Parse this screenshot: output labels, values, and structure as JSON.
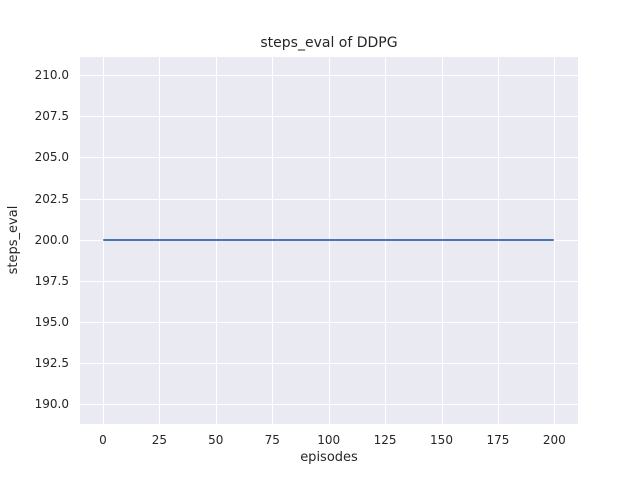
{
  "chart_data": {
    "type": "line",
    "title": "steps_eval of DDPG",
    "xlabel": "episodes",
    "ylabel": "steps_eval",
    "xlim": [
      -10.2,
      210.5
    ],
    "ylim": [
      188.8,
      211.1
    ],
    "grid": true,
    "legend": null,
    "xticks": [
      {
        "v": 0,
        "label": "0"
      },
      {
        "v": 25,
        "label": "25"
      },
      {
        "v": 50,
        "label": "50"
      },
      {
        "v": 75,
        "label": "75"
      },
      {
        "v": 100,
        "label": "100"
      },
      {
        "v": 125,
        "label": "125"
      },
      {
        "v": 150,
        "label": "150"
      },
      {
        "v": 175,
        "label": "175"
      },
      {
        "v": 200,
        "label": "200"
      }
    ],
    "yticks": [
      {
        "v": 190,
        "label": "190.0"
      },
      {
        "v": 192.5,
        "label": "192.5"
      },
      {
        "v": 195,
        "label": "195.0"
      },
      {
        "v": 197.5,
        "label": "197.5"
      },
      {
        "v": 200,
        "label": "200.0"
      },
      {
        "v": 202.5,
        "label": "202.5"
      },
      {
        "v": 205,
        "label": "205.0"
      },
      {
        "v": 207.5,
        "label": "207.5"
      },
      {
        "v": 210,
        "label": "210.0"
      }
    ],
    "series": [
      {
        "name": "DDPG",
        "color": "#4c72b0",
        "x": [
          0,
          200
        ],
        "y": [
          200,
          200
        ]
      }
    ]
  },
  "style": {
    "figure_background": "#ffffff",
    "axes_background": "#eaeaf2",
    "grid_color": "#ffffff",
    "line_color": "#4c72b0",
    "text_color": "#262626"
  }
}
